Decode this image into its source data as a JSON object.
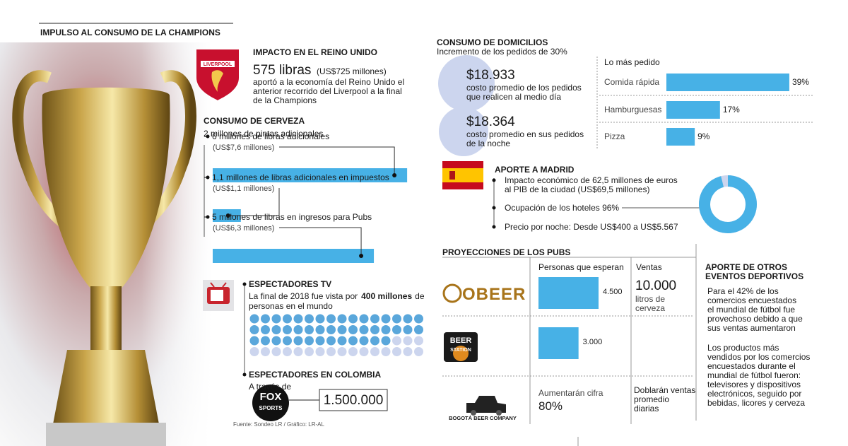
{
  "header": {
    "title": "IMPULSO AL CONSUMO DE LA CHAMPIONS"
  },
  "uk": {
    "logo": "LIVERPOOL",
    "title": "IMPACTO EN EL REINO UNIDO",
    "amount": "575 libras",
    "amount_usd": "(US$725 millones)",
    "lines": [
      "aportó a la economía del Reino Unido el",
      "anterior recorrido del Liverpool a la final",
      "de la Champions"
    ]
  },
  "beer": {
    "title": "CONSUMO DE CERVEZA",
    "subtitle": "2 millones de pintas adicionales",
    "items": [
      {
        "label": "6 millones de libras adicionales",
        "usd_label": "(US$7,6 millones)",
        "value": 7.6
      },
      {
        "label": "1,1 millones de libras adicionales en impuestos",
        "usd_label": "(US$1,1 millones)",
        "value": 1.1
      },
      {
        "label": "5 millones de libras en ingresos para Pubs",
        "usd_label": "(US$6,3 millones)",
        "value": 6.3
      }
    ]
  },
  "tv": {
    "title": "ESPECTADORES TV",
    "line1_start": "La final de 2018 fue vista por",
    "line1_bold": "400 millones",
    "line1_end": "de",
    "line2": "personas en el mundo"
  },
  "colombia": {
    "title": "ESPECTADORES EN COLOMBIA",
    "via": "A través de",
    "logo": [
      "FOX",
      "SPORTS"
    ],
    "viewers": "1.500.000"
  },
  "source": "Fuente: Sondeo LR / Gráfico: LR-AL",
  "delivery": {
    "title": "CONSUMO DE DOMICILIOS",
    "subtitle": "Incremento de los pedidos de 30%",
    "costs": [
      {
        "amount": "$18.933",
        "lines": [
          "costo promedio de los pedidos",
          "que realicen al medio día"
        ]
      },
      {
        "amount": "$18.364",
        "lines": [
          "costo promedio en sus pedidos",
          "de la noche"
        ]
      }
    ],
    "top": {
      "title": "Lo más pedido",
      "items": [
        {
          "name": "Comida rápida",
          "value": 39,
          "value_label": "39%"
        },
        {
          "name": "Hamburguesas",
          "value": 17,
          "value_label": "17%"
        },
        {
          "name": "Pizza",
          "value": 9,
          "value_label": "9%"
        }
      ]
    }
  },
  "madrid": {
    "title": "APORTE A MADRID",
    "impact": [
      "Impacto económico de 62,5 millones de euros",
      "al PIB de la ciudad (US$69,5 millones)"
    ],
    "occupancy_text": "Ocupación de los hoteles 96%",
    "occupancy": 96,
    "price": "Precio por noche: Desde US$400 a US$5.567"
  },
  "pubs": {
    "title": "PROYECCIONES DE LOS PUBS",
    "headers": [
      "Personas que esperan",
      "Ventas"
    ],
    "rows": [
      {
        "logo": "OBEER",
        "value": 4500,
        "value_label": "4.500",
        "sales": [
          "10.000",
          "litros de",
          "cerveza"
        ]
      },
      {
        "logo": [
          "BEER",
          "STATION"
        ],
        "value": 3000,
        "value_label": "3.000"
      },
      {
        "logo": "BOGOTÁ BEER COMPANY",
        "expect": [
          "Aumentarán cifra",
          "80%"
        ],
        "sales": [
          "Doblarán ventas",
          "promedio",
          "diarias"
        ]
      }
    ]
  },
  "other": {
    "title": [
      "APORTE DE OTROS",
      "EVENTOS DEPORTIVOS"
    ],
    "p1": [
      "Para el 42% de los",
      "comercios encuestados",
      "el mundial de fútbol fue",
      "provechoso debido a que",
      "sus ventas aumentaron"
    ],
    "p2": [
      "Los productos más",
      "vendidos por los comercios",
      "encuestados durante el",
      "mundial de fútbol fueron:",
      "televisores y dispositivos",
      "electrónicos, seguido por",
      "bebidas, licores y cerveza"
    ]
  }
}
